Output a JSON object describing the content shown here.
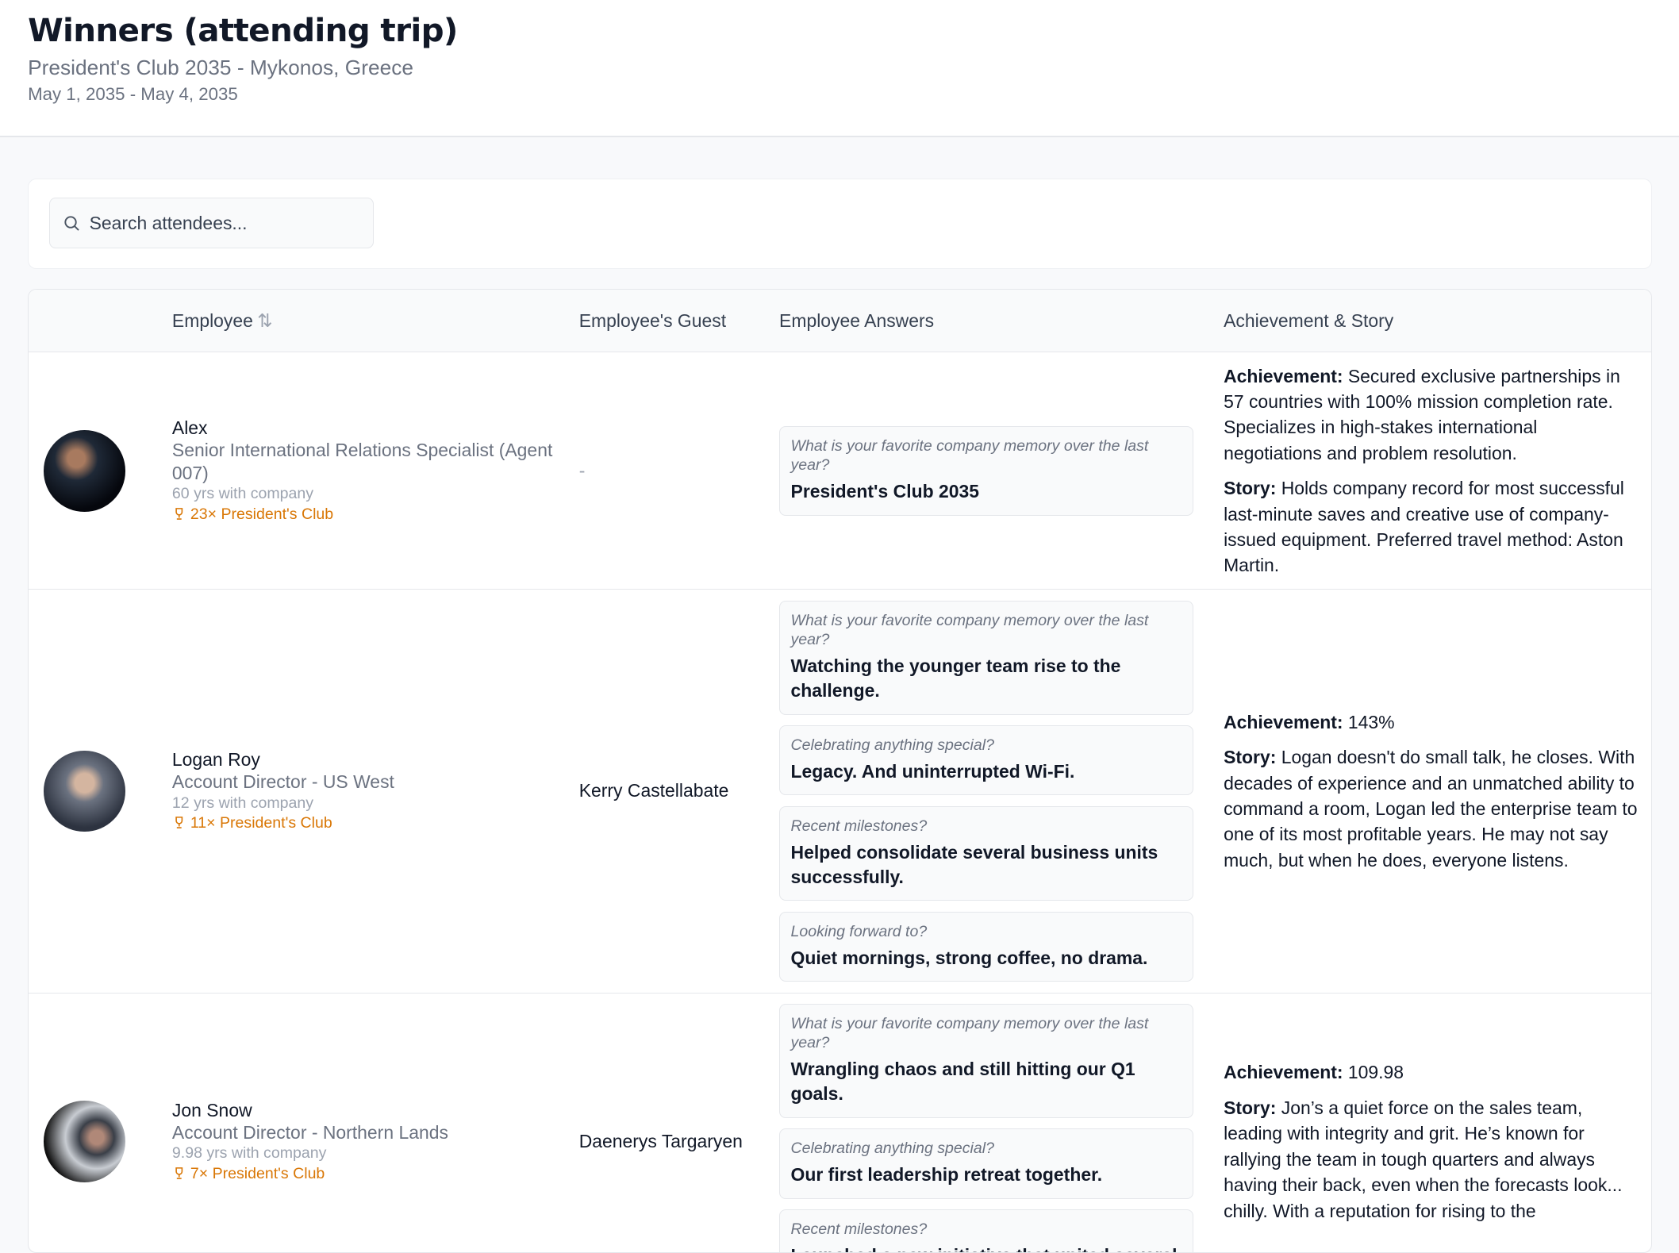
{
  "header": {
    "title": "Winners (attending trip)",
    "subtitle": "President's Club 2035 - Mykonos, Greece",
    "dates": "May 1, 2035 - May 4, 2035"
  },
  "search": {
    "placeholder": "Search attendees...",
    "icon": "search-icon"
  },
  "table": {
    "columns": {
      "employee": "Employee",
      "guest": "Employee's Guest",
      "answers": "Employee Answers",
      "achievement": "Achievement & Story"
    },
    "labels": {
      "achievement": "Achievement:",
      "story": "Story:"
    },
    "rows": [
      {
        "name": "Alex",
        "role": "Senior International Relations Specialist (Agent 007)",
        "tenure": "60 yrs with company",
        "club": "23× President's Club",
        "guest": "-",
        "answers": [
          {
            "q": "What is your favorite company memory over the last year?",
            "a": "President's Club 2035"
          }
        ],
        "achievement": "Secured exclusive partnerships in 57 countries with 100% mission completion rate. Specializes in high-stakes international negotiations and problem resolution.",
        "story": "Holds company record for most successful last-minute saves and creative use of company-issued equipment. Preferred travel method: Aston Martin."
      },
      {
        "name": "Logan Roy",
        "role": "Account Director - US West",
        "tenure": "12 yrs with company",
        "club": "11× President's Club",
        "guest": "Kerry Castellabate",
        "answers": [
          {
            "q": "What is your favorite company memory over the last year?",
            "a": "Watching the younger team rise to the challenge."
          },
          {
            "q": "Celebrating anything special?",
            "a": "Legacy. And uninterrupted Wi-Fi."
          },
          {
            "q": "Recent milestones?",
            "a": "Helped consolidate several business units successfully."
          },
          {
            "q": "Looking forward to?",
            "a": "Quiet mornings, strong coffee, no drama."
          }
        ],
        "achievement": "143%",
        "story": "Logan doesn't do small talk, he closes. With decades of experience and an unmatched ability to command a room, Logan led the enterprise team to one of its most profitable years. He may not say much, but when he does, everyone listens."
      },
      {
        "name": "Jon Snow",
        "role": "Account Director - Northern Lands",
        "tenure": "9.98 yrs with company",
        "club": "7× President's Club",
        "guest": "Daenerys Targaryen",
        "answers": [
          {
            "q": "What is your favorite company memory over the last year?",
            "a": "Wrangling chaos and still hitting our Q1 goals."
          },
          {
            "q": "Celebrating anything special?",
            "a": "Our first leadership retreat together."
          },
          {
            "q": "Recent milestones?",
            "a": "Launched a new initiative that united several"
          }
        ],
        "achievement": "109.98",
        "story": "Jon’s a quiet force on the sales team, leading with integrity and grit. He’s known for rallying the team in tough quarters and always having their back, even when the forecasts look... chilly. With a reputation for rising to the"
      }
    ]
  },
  "colors": {
    "accent": "#d97706",
    "muted": "#6b7280",
    "border": "#e5e7eb"
  }
}
